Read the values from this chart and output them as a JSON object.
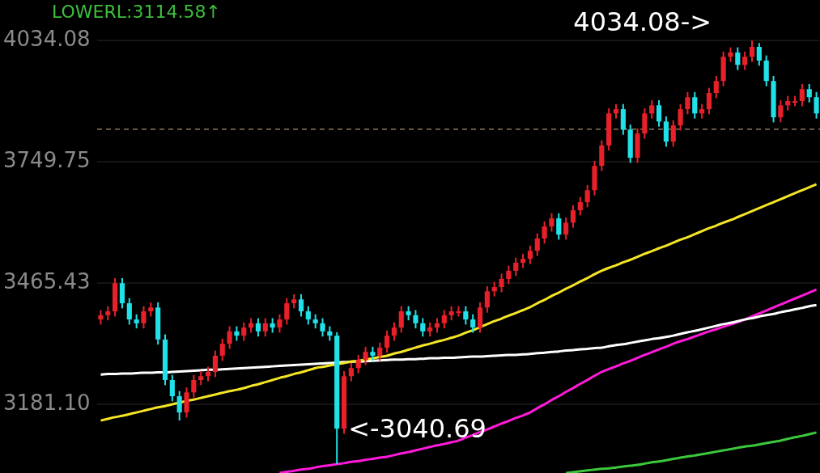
{
  "chart_data": {
    "type": "candlestick",
    "categories": [
      null,
      null,
      null,
      null,
      null,
      null,
      null,
      null,
      null,
      null,
      null,
      null,
      null,
      null,
      null,
      null,
      null,
      null,
      null,
      null,
      null,
      null,
      null,
      null,
      null,
      null,
      null,
      null,
      null,
      null,
      null,
      null,
      null,
      null,
      null,
      null,
      null,
      null,
      null,
      null,
      null,
      null,
      null,
      null,
      null,
      null,
      null,
      null,
      null,
      null,
      null,
      null,
      null,
      null,
      null,
      null,
      null,
      null,
      null,
      null,
      null,
      null,
      null,
      null,
      null,
      null,
      null,
      null,
      null,
      null,
      null,
      null,
      null,
      null,
      null,
      null,
      null,
      null,
      null,
      null,
      null,
      null,
      null,
      null,
      null,
      null,
      null,
      null,
      null,
      null,
      null,
      null,
      null,
      null,
      null,
      null,
      null,
      null,
      null,
      null,
      null
    ],
    "ohlc": [
      [
        3380,
        3402,
        3368,
        3390
      ],
      [
        3390,
        3411,
        3378,
        3399
      ],
      [
        3399,
        3477,
        3387,
        3465
      ],
      [
        3465,
        3477,
        3406,
        3418
      ],
      [
        3418,
        3430,
        3368,
        3380
      ],
      [
        3380,
        3392,
        3359,
        3371
      ],
      [
        3371,
        3411,
        3359,
        3399
      ],
      [
        3399,
        3420,
        3387,
        3408
      ],
      [
        3408,
        3420,
        3321,
        3333
      ],
      [
        3333,
        3345,
        3226,
        3238
      ],
      [
        3238,
        3250,
        3188,
        3200
      ],
      [
        3200,
        3212,
        3143,
        3162
      ],
      [
        3162,
        3221,
        3150,
        3209
      ],
      [
        3209,
        3250,
        3197,
        3238
      ],
      [
        3238,
        3259,
        3226,
        3247
      ],
      [
        3247,
        3269,
        3235,
        3257
      ],
      [
        3257,
        3307,
        3245,
        3295
      ],
      [
        3295,
        3335,
        3283,
        3323
      ],
      [
        3323,
        3364,
        3311,
        3352
      ],
      [
        3352,
        3364,
        3330,
        3342
      ],
      [
        3342,
        3373,
        3330,
        3361
      ],
      [
        3361,
        3383,
        3349,
        3371
      ],
      [
        3371,
        3383,
        3340,
        3352
      ],
      [
        3352,
        3383,
        3340,
        3371
      ],
      [
        3371,
        3383,
        3349,
        3361
      ],
      [
        3361,
        3392,
        3349,
        3380
      ],
      [
        3380,
        3430,
        3368,
        3418
      ],
      [
        3418,
        3439,
        3406,
        3427
      ],
      [
        3427,
        3439,
        3387,
        3399
      ],
      [
        3399,
        3411,
        3368,
        3380
      ],
      [
        3380,
        3392,
        3359,
        3371
      ],
      [
        3371,
        3383,
        3340,
        3352
      ],
      [
        3352,
        3364,
        3330,
        3342
      ],
      [
        3342,
        3350,
        3040.69,
        3124
      ],
      [
        3124,
        3259,
        3112,
        3247
      ],
      [
        3247,
        3278,
        3235,
        3266
      ],
      [
        3266,
        3297,
        3254,
        3285
      ],
      [
        3285,
        3316,
        3273,
        3304
      ],
      [
        3304,
        3316,
        3283,
        3295
      ],
      [
        3295,
        3326,
        3283,
        3314
      ],
      [
        3314,
        3354,
        3302,
        3342
      ],
      [
        3342,
        3373,
        3330,
        3361
      ],
      [
        3361,
        3411,
        3349,
        3399
      ],
      [
        3399,
        3411,
        3378,
        3390
      ],
      [
        3390,
        3402,
        3359,
        3371
      ],
      [
        3371,
        3383,
        3340,
        3352
      ],
      [
        3352,
        3373,
        3340,
        3361
      ],
      [
        3361,
        3383,
        3349,
        3371
      ],
      [
        3371,
        3402,
        3359,
        3390
      ],
      [
        3390,
        3411,
        3378,
        3399
      ],
      [
        3399,
        3411,
        3387,
        3399
      ],
      [
        3399,
        3411,
        3368,
        3380
      ],
      [
        3380,
        3392,
        3349,
        3361
      ],
      [
        3361,
        3420,
        3349,
        3408
      ],
      [
        3408,
        3458,
        3396,
        3446
      ],
      [
        3446,
        3468,
        3434,
        3456
      ],
      [
        3456,
        3487,
        3444,
        3475
      ],
      [
        3475,
        3506,
        3463,
        3494
      ],
      [
        3494,
        3525,
        3482,
        3513
      ],
      [
        3513,
        3534,
        3501,
        3522
      ],
      [
        3522,
        3553,
        3510,
        3541
      ],
      [
        3541,
        3582,
        3529,
        3570
      ],
      [
        3570,
        3610,
        3558,
        3598
      ],
      [
        3598,
        3629,
        3586,
        3617
      ],
      [
        3617,
        3629,
        3567,
        3579
      ],
      [
        3579,
        3619,
        3567,
        3607
      ],
      [
        3607,
        3648,
        3595,
        3636
      ],
      [
        3636,
        3667,
        3624,
        3655
      ],
      [
        3655,
        3695,
        3643,
        3683
      ],
      [
        3683,
        3752,
        3671,
        3740
      ],
      [
        3740,
        3800,
        3728,
        3788
      ],
      [
        3788,
        3875,
        3776,
        3863
      ],
      [
        3863,
        3885,
        3851,
        3873
      ],
      [
        3873,
        3885,
        3813,
        3825
      ],
      [
        3825,
        3837,
        3747,
        3759
      ],
      [
        3759,
        3828,
        3747,
        3816
      ],
      [
        3816,
        3875,
        3804,
        3863
      ],
      [
        3863,
        3894,
        3851,
        3882
      ],
      [
        3882,
        3894,
        3832,
        3844
      ],
      [
        3844,
        3856,
        3785,
        3797
      ],
      [
        3797,
        3847,
        3785,
        3835
      ],
      [
        3835,
        3885,
        3823,
        3873
      ],
      [
        3873,
        3913,
        3861,
        3901
      ],
      [
        3901,
        3913,
        3851,
        3863
      ],
      [
        3863,
        3885,
        3851,
        3873
      ],
      [
        3873,
        3923,
        3861,
        3911
      ],
      [
        3911,
        3951,
        3899,
        3939
      ],
      [
        3939,
        4008,
        3927,
        3996
      ],
      [
        3996,
        4018,
        3984,
        4006
      ],
      [
        4006,
        4018,
        3965,
        3977
      ],
      [
        3977,
        4008,
        3965,
        3996
      ],
      [
        3996,
        4034.08,
        3984,
        4019
      ],
      [
        4019,
        4028,
        3975,
        3987
      ],
      [
        3987,
        3999,
        3927,
        3939
      ],
      [
        3939,
        3951,
        3842,
        3854
      ],
      [
        3854,
        3894,
        3842,
        3882
      ],
      [
        3882,
        3904,
        3870,
        3892
      ],
      [
        3892,
        3904,
        3880,
        3892
      ],
      [
        3892,
        3932,
        3880,
        3920
      ],
      [
        3920,
        3932,
        3889,
        3901
      ],
      [
        3901,
        3913,
        3851,
        3863
      ]
    ],
    "series": [
      {
        "type": "line",
        "color": "#f5e625",
        "values": [
          3143,
          3147,
          3151,
          3154,
          3158,
          3162,
          3166,
          3170,
          3174,
          3177,
          3181,
          3185,
          3189,
          3192,
          3196,
          3200,
          3204,
          3208,
          3212,
          3215,
          3219,
          3224,
          3228,
          3233,
          3238,
          3243,
          3247,
          3252,
          3256,
          3261,
          3266,
          3269,
          3272,
          3275,
          3278,
          3281,
          3283,
          3286,
          3289,
          3292,
          3295,
          3300,
          3304,
          3309,
          3314,
          3319,
          3323,
          3328,
          3332,
          3337,
          3342,
          3349,
          3355,
          3362,
          3369,
          3376,
          3382,
          3389,
          3395,
          3402,
          3409,
          3418,
          3426,
          3435,
          3443,
          3452,
          3460,
          3469,
          3477,
          3486,
          3494,
          3501,
          3507,
          3514,
          3520,
          3527,
          3534,
          3540,
          3547,
          3553,
          3560,
          3567,
          3573,
          3580,
          3587,
          3594,
          3600,
          3607,
          3613,
          3620,
          3627,
          3634,
          3641,
          3648,
          3655,
          3662,
          3669,
          3676,
          3683,
          3690,
          3697
        ]
      },
      {
        "type": "line",
        "color": "#ffffff",
        "values": [
          3251,
          3252,
          3252,
          3253,
          3253,
          3254,
          3255,
          3255,
          3256,
          3256,
          3257,
          3258,
          3259,
          3260,
          3261,
          3262,
          3262,
          3263,
          3264,
          3265,
          3266,
          3267,
          3268,
          3269,
          3270,
          3271,
          3272,
          3273,
          3274,
          3275,
          3276,
          3277,
          3278,
          3279,
          3280,
          3281,
          3281,
          3282,
          3283,
          3284,
          3285,
          3286,
          3286,
          3287,
          3287,
          3288,
          3289,
          3289,
          3290,
          3290,
          3291,
          3292,
          3293,
          3293,
          3294,
          3295,
          3296,
          3297,
          3297,
          3298,
          3299,
          3301,
          3302,
          3304,
          3305,
          3307,
          3308,
          3310,
          3311,
          3313,
          3314,
          3317,
          3320,
          3322,
          3325,
          3328,
          3331,
          3334,
          3336,
          3339,
          3342,
          3346,
          3350,
          3353,
          3357,
          3361,
          3365,
          3369,
          3372,
          3376,
          3380,
          3383,
          3387,
          3390,
          3393,
          3397,
          3400,
          3404,
          3407,
          3411,
          3414
        ]
      },
      {
        "type": "line",
        "color": "#ff1ad9",
        "values": [
          null,
          null,
          null,
          null,
          null,
          null,
          null,
          null,
          null,
          null,
          null,
          null,
          null,
          null,
          null,
          null,
          null,
          null,
          null,
          null,
          null,
          null,
          null,
          null,
          null,
          3020,
          3023,
          3025,
          3028,
          3030,
          3033,
          3036,
          3038,
          3041,
          3043,
          3046,
          3048,
          3051,
          3053,
          3056,
          3058,
          3062,
          3066,
          3069,
          3073,
          3077,
          3081,
          3085,
          3088,
          3092,
          3096,
          3103,
          3109,
          3116,
          3122,
          3129,
          3136,
          3142,
          3149,
          3155,
          3162,
          3172,
          3181,
          3191,
          3200,
          3210,
          3219,
          3229,
          3238,
          3248,
          3257,
          3264,
          3270,
          3277,
          3283,
          3290,
          3297,
          3303,
          3310,
          3316,
          3323,
          3329,
          3334,
          3340,
          3346,
          3352,
          3357,
          3363,
          3368,
          3374,
          3380,
          3387,
          3394,
          3401,
          3408,
          3415,
          3422,
          3429,
          3436,
          3443,
          3450
        ]
      },
      {
        "type": "line",
        "color": "#3cc83c",
        "values": [
          null,
          null,
          null,
          null,
          null,
          null,
          null,
          null,
          null,
          null,
          null,
          null,
          null,
          null,
          null,
          null,
          null,
          null,
          null,
          null,
          null,
          null,
          null,
          null,
          null,
          null,
          null,
          null,
          null,
          null,
          null,
          null,
          null,
          null,
          null,
          null,
          null,
          null,
          null,
          null,
          null,
          null,
          null,
          null,
          null,
          null,
          null,
          null,
          null,
          null,
          null,
          null,
          null,
          null,
          null,
          null,
          null,
          null,
          null,
          null,
          null,
          null,
          null,
          null,
          null,
          3020,
          3022,
          3024,
          3026,
          3028,
          3030,
          3031,
          3033,
          3035,
          3037,
          3039,
          3042,
          3045,
          3047,
          3050,
          3053,
          3056,
          3059,
          3061,
          3064,
          3067,
          3070,
          3073,
          3076,
          3079,
          3082,
          3084,
          3087,
          3090,
          3093,
          3096,
          3100,
          3104,
          3107,
          3111,
          3115
        ]
      }
    ],
    "ylim": [
      3020,
      4129
    ],
    "yticks": [
      {
        "value": 3181.1,
        "label": "3181.10"
      },
      3465.43,
      3749.75,
      4034.08
    ],
    "grid": "y",
    "ref_lines": [
      {
        "axis": "y",
        "value": 3826,
        "color": "#d9b38c",
        "line_style": "dashed"
      }
    ],
    "annotations": [
      "LOWERL:3114.58↑",
      "4034.08->",
      "<-3040.69"
    ]
  }
}
